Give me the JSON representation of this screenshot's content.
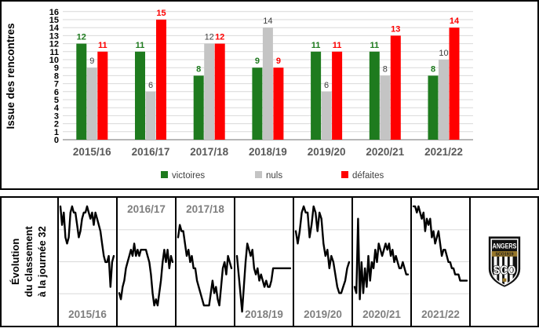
{
  "colors": {
    "victoires": "#1E7B1E",
    "nuls": "#C4C4C4",
    "defaites": "#FF0000",
    "nuls_label": "#404040",
    "grid": "#D9D9D9",
    "baseline": "#8C8C8C",
    "tick_text": "#000000",
    "category_text": "#595959",
    "legend_text": "#404040",
    "season_label": "#7F7F7F",
    "sparkline": "#000000",
    "logo_gold": "#96762A",
    "logo_black": "#121212"
  },
  "chart_data": [
    {
      "type": "bar",
      "title": "",
      "xlabel": "",
      "ylabel": "Issue des rencontres",
      "ylim": [
        0,
        16
      ],
      "yticks": [
        0,
        1,
        2,
        3,
        4,
        5,
        6,
        7,
        8,
        9,
        10,
        11,
        12,
        13,
        14,
        15,
        16
      ],
      "grid": true,
      "legend_position": "bottom",
      "categories": [
        "2015/16",
        "2016/17",
        "2017/18",
        "2018/19",
        "2019/20",
        "2020/21",
        "2021/22"
      ],
      "series": [
        {
          "name": "victoires",
          "color": "#1E7B1E",
          "label_color": "#1E7B1E",
          "label_bold": true,
          "values": [
            12,
            11,
            8,
            9,
            11,
            11,
            8
          ]
        },
        {
          "name": "nuls",
          "color": "#C4C4C4",
          "label_color": "#404040",
          "label_bold": false,
          "values": [
            9,
            6,
            12,
            14,
            6,
            8,
            10
          ]
        },
        {
          "name": "défaites",
          "color": "#FF0000",
          "label_color": "#FF0000",
          "label_bold": true,
          "values": [
            11,
            15,
            12,
            9,
            11,
            13,
            14
          ]
        }
      ]
    },
    {
      "type": "line",
      "title": "Évolution du classement à la journée 32",
      "y_inverted": true,
      "ylim": [
        1,
        20
      ],
      "grid": true,
      "panels": [
        {
          "season": "2015/16",
          "label_position": "bottom",
          "ranks": [
            2,
            5,
            3,
            7,
            8,
            7,
            3,
            2,
            3,
            3,
            5,
            7,
            6,
            4,
            3,
            3,
            2,
            3,
            4,
            3,
            5,
            3,
            4,
            5,
            6,
            8,
            10,
            11,
            11,
            10,
            15,
            11,
            10
          ]
        },
        {
          "season": "2016/17",
          "label_position": "top",
          "ranks": [
            16,
            17,
            15,
            14,
            12,
            11,
            10,
            9,
            10,
            8,
            10,
            9,
            10,
            9,
            9,
            9,
            9,
            10,
            11,
            13,
            16,
            18,
            17,
            18,
            16,
            14,
            11,
            9,
            11,
            9,
            12,
            10,
            11
          ]
        },
        {
          "season": "2017/18",
          "label_position": "top",
          "ranks": [
            7,
            5,
            6,
            6,
            8,
            10,
            9,
            11,
            10,
            12,
            12,
            14,
            15,
            16,
            17,
            18,
            18,
            18,
            18,
            16,
            14,
            16,
            15,
            17,
            18,
            15,
            12,
            11,
            13,
            10,
            11,
            12
          ]
        },
        {
          "season": "2018/19",
          "label_position": "bottom",
          "ranks": [
            10,
            13,
            16,
            19,
            15,
            11,
            8,
            9,
            10,
            9,
            12,
            13,
            12,
            14,
            13,
            14,
            15,
            14,
            15,
            15,
            14,
            12,
            12,
            12,
            12,
            12,
            12,
            12,
            12,
            12,
            12,
            12
          ]
        },
        {
          "season": "2019/20",
          "label_position": "bottom",
          "ranks": [
            6,
            8,
            6,
            3,
            2,
            3,
            3,
            7,
            5,
            2,
            3,
            6,
            3,
            4,
            8,
            10,
            9,
            12,
            10,
            11,
            13,
            15,
            16,
            16,
            15,
            14,
            12,
            11
          ]
        },
        {
          "season": "2020/21",
          "label_position": "bottom",
          "ranks": [
            15,
            16,
            4,
            17,
            11,
            16,
            12,
            15,
            10,
            14,
            11,
            12,
            9,
            11,
            8,
            9,
            10,
            9,
            8,
            9,
            8,
            10,
            9,
            11,
            10,
            11,
            12,
            12,
            11,
            12,
            13,
            13
          ]
        },
        {
          "season": "2021/22",
          "label_position": "bottom",
          "ranks": [
            2,
            2,
            3,
            2,
            3,
            4,
            3,
            6,
            4,
            5,
            4,
            7,
            6,
            8,
            7,
            6,
            8,
            10,
            9,
            9,
            10,
            11,
            11,
            12,
            12,
            13,
            13,
            13,
            14,
            14,
            14,
            14,
            14
          ]
        }
      ]
    }
  ],
  "bottom_panel": {
    "title_lines": [
      "Évolution",
      "du classement",
      "à la journée 32"
    ]
  },
  "logo": {
    "top_text": "ANGERS",
    "band_text": "SCO1919",
    "monogram": "SCO"
  }
}
